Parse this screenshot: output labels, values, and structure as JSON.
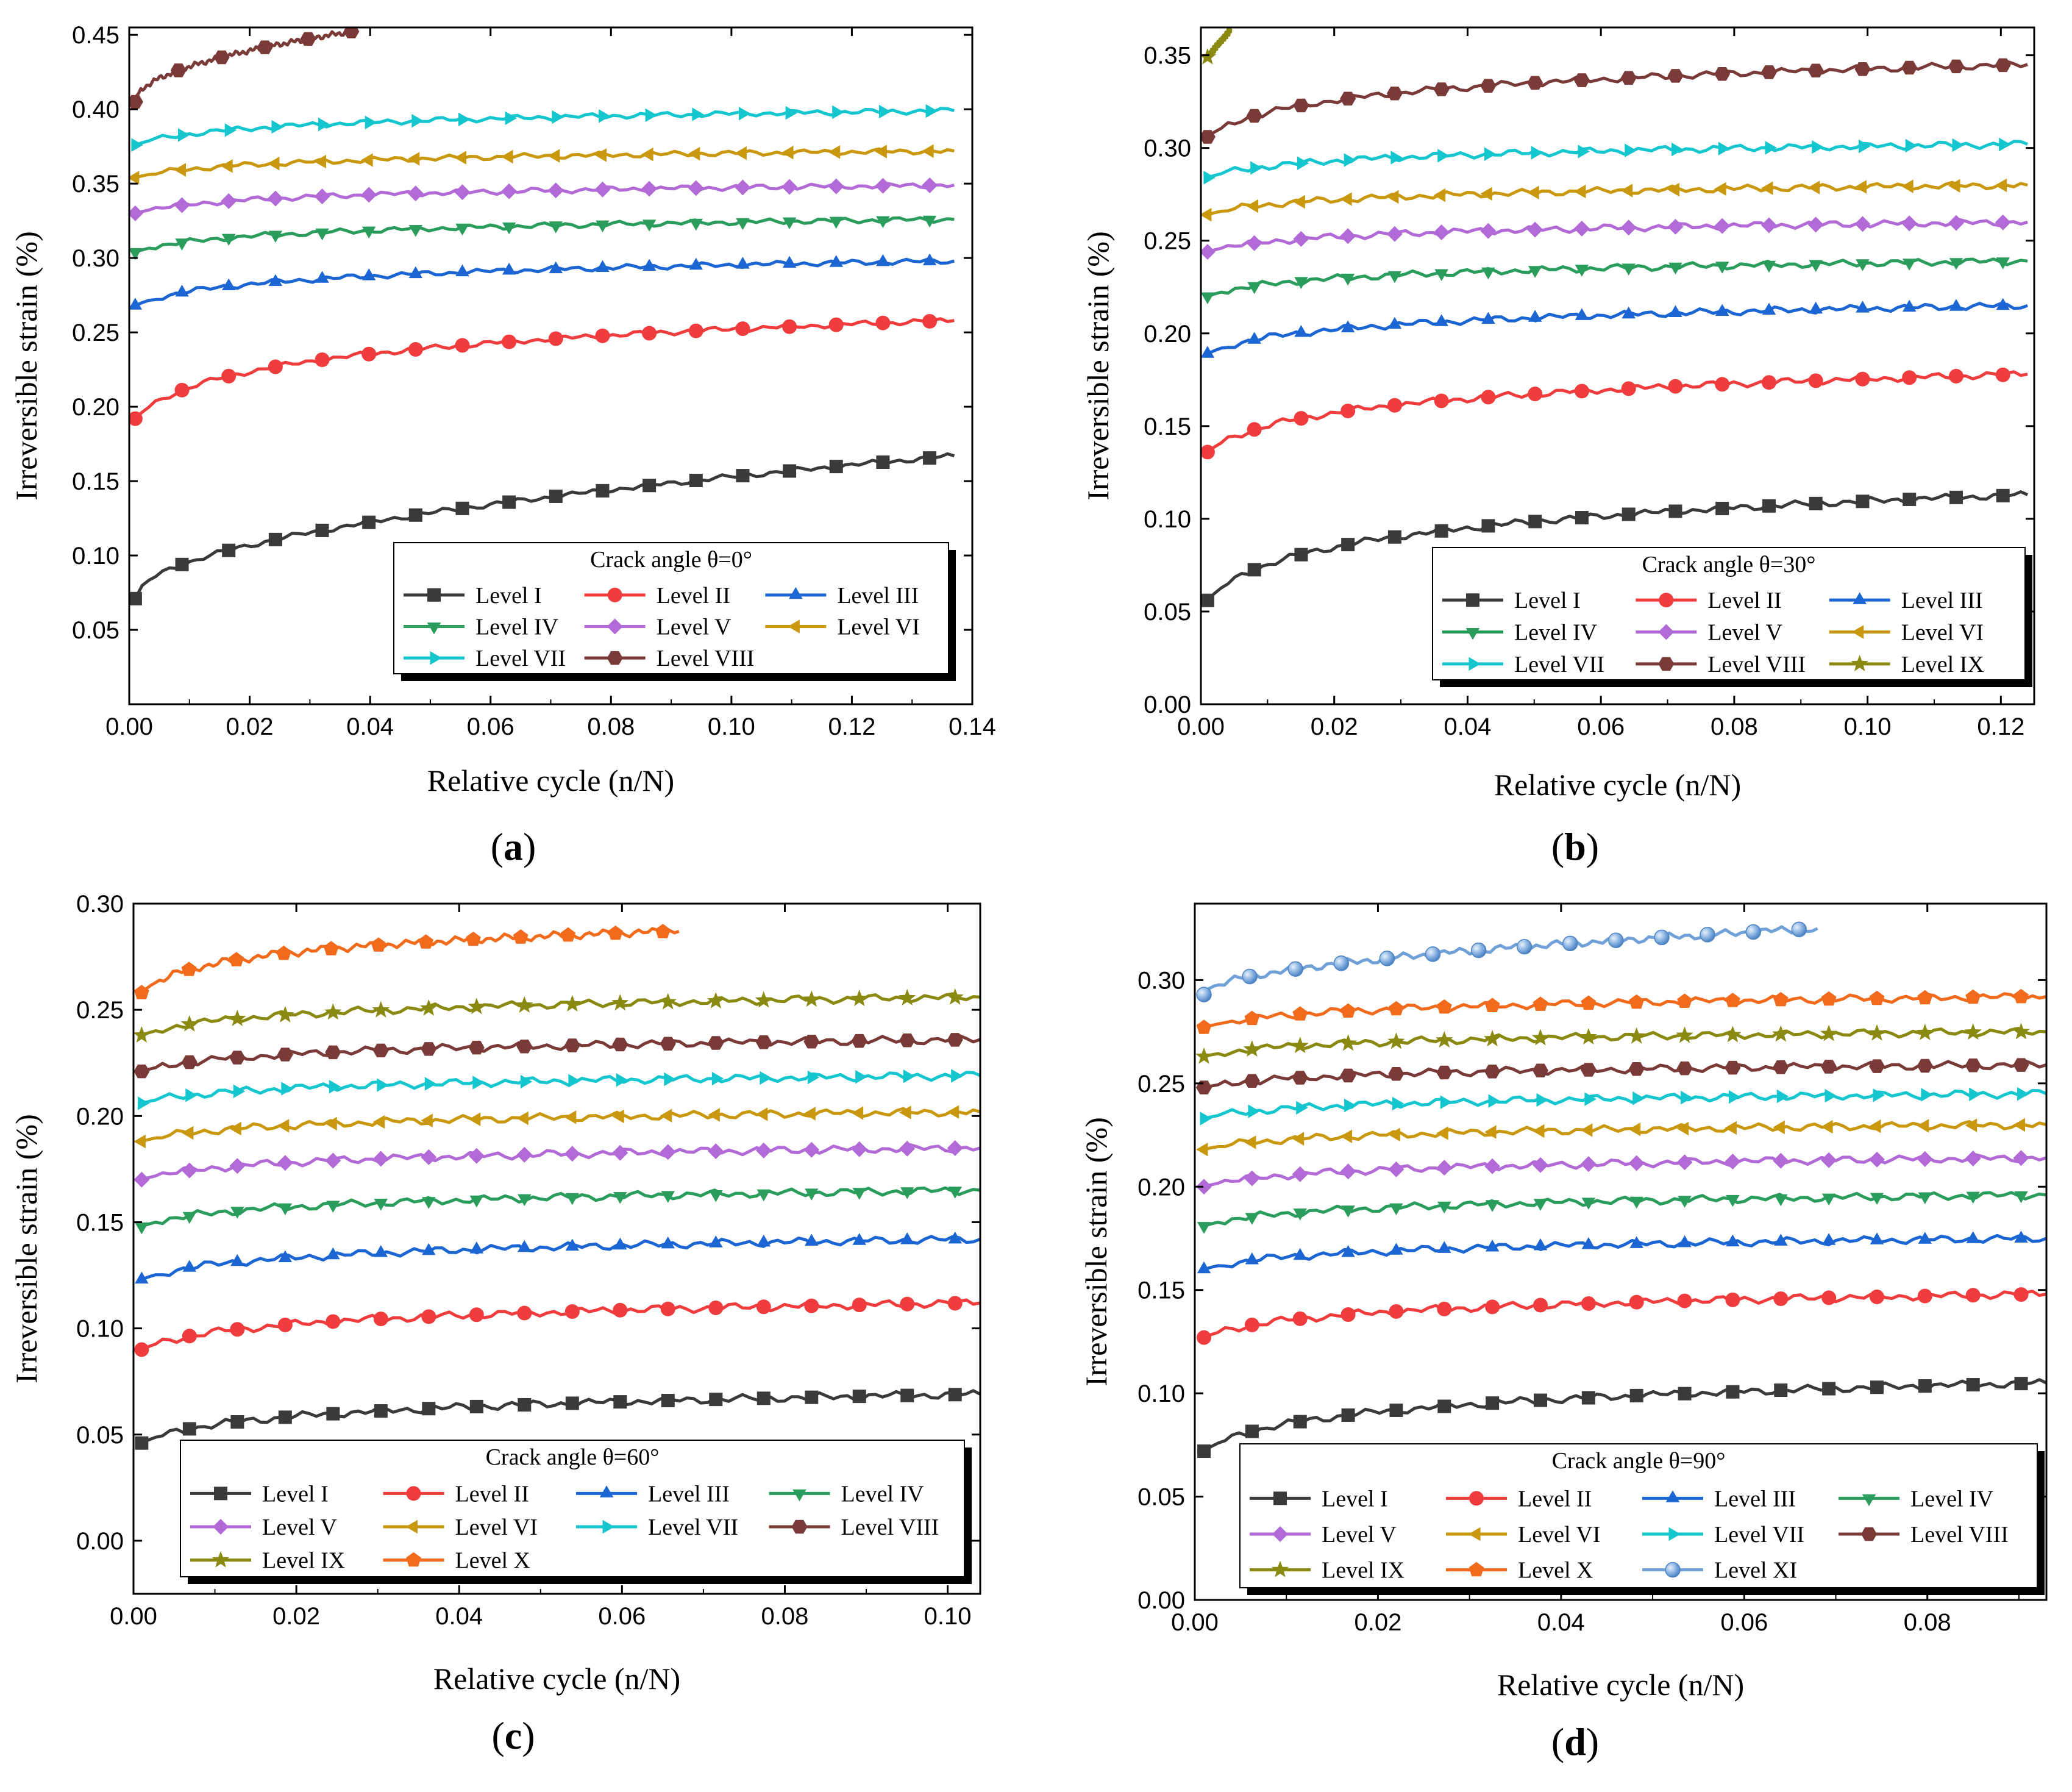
{
  "figure": {
    "panel_labels": [
      "(a)",
      "(b)",
      "(c)",
      "(d)"
    ]
  },
  "chart_data": [
    {
      "type": "line",
      "panel": "a",
      "xlabel": "Relative cycle (n/N)",
      "ylabel": "Irreversible strain (%)",
      "xlim": [
        0,
        0.14
      ],
      "ylim": [
        0,
        0.455
      ],
      "xticks": [
        "0.00",
        "0.02",
        "0.04",
        "0.06",
        "0.08",
        "0.10",
        "0.12",
        "0.14"
      ],
      "xtick_values": [
        0,
        0.02,
        0.04,
        0.06,
        0.08,
        0.1,
        0.12,
        0.14
      ],
      "yticks": [
        "0.05",
        "0.10",
        "0.15",
        "0.20",
        "0.25",
        "0.30",
        "0.35",
        "0.40",
        "0.45"
      ],
      "ytick_values": [
        0.05,
        0.1,
        0.15,
        0.2,
        0.25,
        0.3,
        0.35,
        0.4,
        0.45
      ],
      "legend_title": "Crack angle θ=0°",
      "legend_columns": 3,
      "series": [
        {
          "name": "Level I",
          "color": "#3a3a3a",
          "marker": "square",
          "x_start": 0.001,
          "x_end": 0.137,
          "y_start": 0.071,
          "y_end": 0.167,
          "curve": "sqrt",
          "n_markers": 18
        },
        {
          "name": "Level II",
          "color": "#f03c3c",
          "marker": "circle",
          "x_start": 0.001,
          "x_end": 0.137,
          "y_start": 0.192,
          "y_end": 0.258,
          "curve": "log",
          "n_markers": 18
        },
        {
          "name": "Level III",
          "color": "#1c66d4",
          "marker": "triangle-up",
          "x_start": 0.001,
          "x_end": 0.137,
          "y_start": 0.268,
          "y_end": 0.298,
          "curve": "log",
          "n_markers": 18
        },
        {
          "name": "Level IV",
          "color": "#2a9d5c",
          "marker": "triangle-down",
          "x_start": 0.001,
          "x_end": 0.137,
          "y_start": 0.304,
          "y_end": 0.326,
          "curve": "log",
          "n_markers": 18
        },
        {
          "name": "Level V",
          "color": "#b26ad6",
          "marker": "diamond",
          "x_start": 0.001,
          "x_end": 0.137,
          "y_start": 0.33,
          "y_end": 0.349,
          "curve": "log",
          "n_markers": 18
        },
        {
          "name": "Level VI",
          "color": "#c9980e",
          "marker": "triangle-left",
          "x_start": 0.001,
          "x_end": 0.137,
          "y_start": 0.354,
          "y_end": 0.372,
          "curve": "log",
          "n_markers": 18
        },
        {
          "name": "Level VII",
          "color": "#16c6cf",
          "marker": "triangle-right",
          "x_start": 0.001,
          "x_end": 0.137,
          "y_start": 0.376,
          "y_end": 0.399,
          "curve": "log",
          "n_markers": 18
        },
        {
          "name": "Level VIII",
          "color": "#7a3b38",
          "marker": "hexagon",
          "x_start": 0.001,
          "x_end": 0.038,
          "y_start": 0.405,
          "y_end": 0.453,
          "curve": "sqrt",
          "n_markers": 6
        }
      ]
    },
    {
      "type": "line",
      "panel": "b",
      "xlabel": "Relative cycle (n/N)",
      "ylabel": "Irreversible strain (%)",
      "xlim": [
        0,
        0.125
      ],
      "ylim": [
        0,
        0.365
      ],
      "xticks": [
        "0.00",
        "0.02",
        "0.04",
        "0.06",
        "0.08",
        "0.10",
        "0.12"
      ],
      "xtick_values": [
        0,
        0.02,
        0.04,
        0.06,
        0.08,
        0.1,
        0.12
      ],
      "yticks": [
        "0.00",
        "0.05",
        "0.10",
        "0.15",
        "0.20",
        "0.25",
        "0.30",
        "0.35"
      ],
      "ytick_values": [
        0,
        0.05,
        0.1,
        0.15,
        0.2,
        0.25,
        0.3,
        0.35
      ],
      "legend_title": "Crack angle θ=30°",
      "legend_columns": 3,
      "series": [
        {
          "name": "Level I",
          "color": "#3a3a3a",
          "marker": "square",
          "x_start": 0.001,
          "x_end": 0.124,
          "y_start": 0.056,
          "y_end": 0.113,
          "curve": "log",
          "n_markers": 18
        },
        {
          "name": "Level II",
          "color": "#f03c3c",
          "marker": "circle",
          "x_start": 0.001,
          "x_end": 0.124,
          "y_start": 0.136,
          "y_end": 0.178,
          "curve": "log",
          "n_markers": 18
        },
        {
          "name": "Level III",
          "color": "#1c66d4",
          "marker": "triangle-up",
          "x_start": 0.001,
          "x_end": 0.124,
          "y_start": 0.189,
          "y_end": 0.215,
          "curve": "log",
          "n_markers": 18
        },
        {
          "name": "Level IV",
          "color": "#2a9d5c",
          "marker": "triangle-down",
          "x_start": 0.001,
          "x_end": 0.124,
          "y_start": 0.22,
          "y_end": 0.239,
          "curve": "log",
          "n_markers": 18
        },
        {
          "name": "Level V",
          "color": "#b26ad6",
          "marker": "diamond",
          "x_start": 0.001,
          "x_end": 0.124,
          "y_start": 0.244,
          "y_end": 0.26,
          "curve": "log",
          "n_markers": 18
        },
        {
          "name": "Level VI",
          "color": "#c9980e",
          "marker": "triangle-left",
          "x_start": 0.001,
          "x_end": 0.124,
          "y_start": 0.264,
          "y_end": 0.28,
          "curve": "log",
          "n_markers": 18
        },
        {
          "name": "Level VII",
          "color": "#16c6cf",
          "marker": "triangle-right",
          "x_start": 0.001,
          "x_end": 0.124,
          "y_start": 0.284,
          "y_end": 0.302,
          "curve": "log",
          "n_markers": 18
        },
        {
          "name": "Level VIII",
          "color": "#7a3b38",
          "marker": "hexagon",
          "x_start": 0.001,
          "x_end": 0.124,
          "y_start": 0.306,
          "y_end": 0.345,
          "curve": "log",
          "n_markers": 18
        },
        {
          "name": "Level IX",
          "color": "#8a8a12",
          "marker": "star",
          "x_start": 0.001,
          "x_end": 0.0045,
          "y_start": 0.349,
          "y_end": 0.364,
          "curve": "linear",
          "n_markers": 1
        }
      ]
    },
    {
      "type": "line",
      "panel": "c",
      "xlabel": "Relative cycle (n/N)",
      "ylabel": "Irreversible strain (%)",
      "xlim": [
        0,
        0.104
      ],
      "ylim": [
        -0.025,
        0.3
      ],
      "xticks": [
        "0.00",
        "0.02",
        "0.04",
        "0.06",
        "0.08",
        "0.10"
      ],
      "xtick_values": [
        0,
        0.02,
        0.04,
        0.06,
        0.08,
        0.1
      ],
      "yticks": [
        "0.00",
        "0.05",
        "0.10",
        "0.15",
        "0.20",
        "0.25",
        "0.30"
      ],
      "ytick_values": [
        0,
        0.05,
        0.1,
        0.15,
        0.2,
        0.25,
        0.3
      ],
      "legend_title": "Crack angle θ=60°",
      "legend_columns": 4,
      "series": [
        {
          "name": "Level I",
          "color": "#3a3a3a",
          "marker": "square",
          "x_start": 0.001,
          "x_end": 0.104,
          "y_start": 0.046,
          "y_end": 0.069,
          "curve": "log",
          "n_markers": 18
        },
        {
          "name": "Level II",
          "color": "#f03c3c",
          "marker": "circle",
          "x_start": 0.001,
          "x_end": 0.104,
          "y_start": 0.09,
          "y_end": 0.112,
          "curve": "log",
          "n_markers": 18
        },
        {
          "name": "Level III",
          "color": "#1c66d4",
          "marker": "triangle-up",
          "x_start": 0.001,
          "x_end": 0.104,
          "y_start": 0.123,
          "y_end": 0.142,
          "curve": "log",
          "n_markers": 18
        },
        {
          "name": "Level IV",
          "color": "#2a9d5c",
          "marker": "triangle-down",
          "x_start": 0.001,
          "x_end": 0.104,
          "y_start": 0.148,
          "y_end": 0.165,
          "curve": "log",
          "n_markers": 18
        },
        {
          "name": "Level V",
          "color": "#b26ad6",
          "marker": "diamond",
          "x_start": 0.001,
          "x_end": 0.104,
          "y_start": 0.17,
          "y_end": 0.185,
          "curve": "log",
          "n_markers": 18
        },
        {
          "name": "Level VI",
          "color": "#c9980e",
          "marker": "triangle-left",
          "x_start": 0.001,
          "x_end": 0.104,
          "y_start": 0.188,
          "y_end": 0.202,
          "curve": "log",
          "n_markers": 18
        },
        {
          "name": "Level VII",
          "color": "#16c6cf",
          "marker": "triangle-right",
          "x_start": 0.001,
          "x_end": 0.104,
          "y_start": 0.206,
          "y_end": 0.219,
          "curve": "log",
          "n_markers": 18
        },
        {
          "name": "Level VIII",
          "color": "#7a3b38",
          "marker": "hexagon",
          "x_start": 0.001,
          "x_end": 0.104,
          "y_start": 0.221,
          "y_end": 0.236,
          "curve": "log",
          "n_markers": 18
        },
        {
          "name": "Level IX",
          "color": "#8a8a12",
          "marker": "star",
          "x_start": 0.001,
          "x_end": 0.104,
          "y_start": 0.238,
          "y_end": 0.256,
          "curve": "log",
          "n_markers": 18
        },
        {
          "name": "Level X",
          "color": "#f26b1c",
          "marker": "pentagon",
          "x_start": 0.001,
          "x_end": 0.067,
          "y_start": 0.258,
          "y_end": 0.287,
          "curve": "log",
          "n_markers": 12
        }
      ]
    },
    {
      "type": "line",
      "panel": "d",
      "xlabel": "Relative cycle (n/N)",
      "ylabel": "Irreversible strain (%)",
      "xlim": [
        0,
        0.093
      ],
      "ylim": [
        0,
        0.337
      ],
      "xticks": [
        "0.00",
        "0.02",
        "0.04",
        "0.06",
        "0.08"
      ],
      "xtick_values": [
        0,
        0.02,
        0.04,
        0.06,
        0.08
      ],
      "yticks": [
        "0.00",
        "0.05",
        "0.10",
        "0.15",
        "0.20",
        "0.25",
        "0.30"
      ],
      "ytick_values": [
        0,
        0.05,
        0.1,
        0.15,
        0.2,
        0.25,
        0.3
      ],
      "legend_title": "Crack angle θ=90°",
      "legend_columns": 4,
      "series": [
        {
          "name": "Level I",
          "color": "#3a3a3a",
          "marker": "square",
          "x_start": 0.001,
          "x_end": 0.093,
          "y_start": 0.072,
          "y_end": 0.105,
          "curve": "log",
          "n_markers": 18
        },
        {
          "name": "Level II",
          "color": "#f03c3c",
          "marker": "circle",
          "x_start": 0.001,
          "x_end": 0.093,
          "y_start": 0.127,
          "y_end": 0.148,
          "curve": "log",
          "n_markers": 18
        },
        {
          "name": "Level III",
          "color": "#1c66d4",
          "marker": "triangle-up",
          "x_start": 0.001,
          "x_end": 0.093,
          "y_start": 0.16,
          "y_end": 0.175,
          "curve": "log",
          "n_markers": 18
        },
        {
          "name": "Level IV",
          "color": "#2a9d5c",
          "marker": "triangle-down",
          "x_start": 0.001,
          "x_end": 0.093,
          "y_start": 0.181,
          "y_end": 0.196,
          "curve": "log",
          "n_markers": 18
        },
        {
          "name": "Level V",
          "color": "#b26ad6",
          "marker": "diamond",
          "x_start": 0.001,
          "x_end": 0.093,
          "y_start": 0.2,
          "y_end": 0.214,
          "curve": "log",
          "n_markers": 18
        },
        {
          "name": "Level VI",
          "color": "#c9980e",
          "marker": "triangle-left",
          "x_start": 0.001,
          "x_end": 0.093,
          "y_start": 0.218,
          "y_end": 0.23,
          "curve": "log",
          "n_markers": 18
        },
        {
          "name": "Level VII",
          "color": "#16c6cf",
          "marker": "triangle-right",
          "x_start": 0.001,
          "x_end": 0.093,
          "y_start": 0.233,
          "y_end": 0.245,
          "curve": "log",
          "n_markers": 18
        },
        {
          "name": "Level VIII",
          "color": "#7a3b38",
          "marker": "hexagon",
          "x_start": 0.001,
          "x_end": 0.093,
          "y_start": 0.248,
          "y_end": 0.259,
          "curve": "log",
          "n_markers": 18
        },
        {
          "name": "Level IX",
          "color": "#8a8a12",
          "marker": "star",
          "x_start": 0.001,
          "x_end": 0.093,
          "y_start": 0.263,
          "y_end": 0.275,
          "curve": "log",
          "n_markers": 18
        },
        {
          "name": "Level X",
          "color": "#f26b1c",
          "marker": "pentagon",
          "x_start": 0.001,
          "x_end": 0.093,
          "y_start": 0.277,
          "y_end": 0.292,
          "curve": "log",
          "n_markers": 18
        },
        {
          "name": "Level XI",
          "color": "#6fa0d8",
          "marker": "sphere",
          "x_start": 0.001,
          "x_end": 0.068,
          "y_start": 0.293,
          "y_end": 0.325,
          "curve": "sqrt",
          "n_markers": 14
        }
      ]
    }
  ]
}
